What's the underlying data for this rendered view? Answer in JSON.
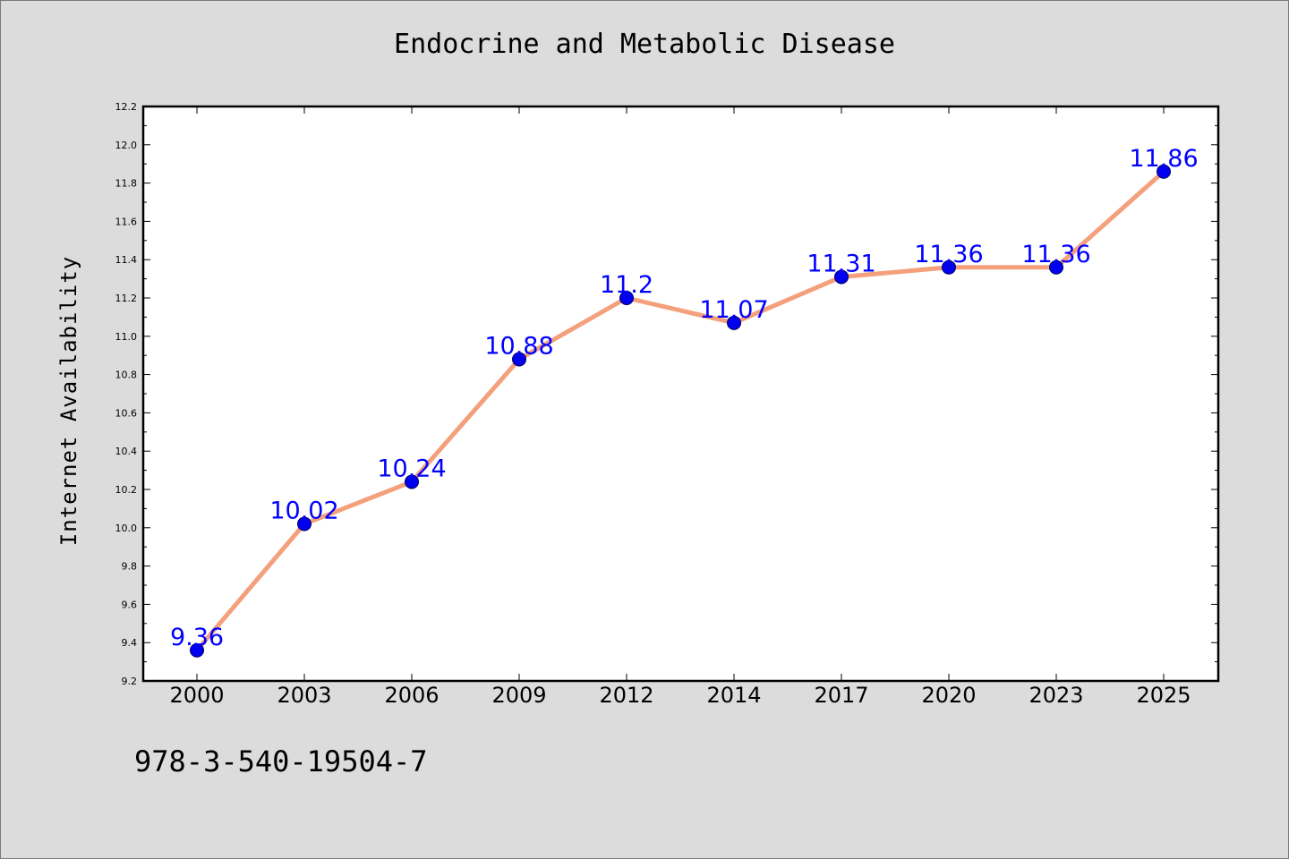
{
  "chart_data": {
    "type": "line",
    "title": "Endocrine and Metabolic Disease",
    "xlabel": "",
    "ylabel": "Internet Availability",
    "categories": [
      "2000",
      "2003",
      "2006",
      "2009",
      "2012",
      "2014",
      "2017",
      "2020",
      "2023",
      "2025"
    ],
    "series": [
      {
        "values": [
          9.36,
          10.02,
          10.24,
          10.88,
          11.2,
          11.07,
          11.31,
          11.36,
          11.36,
          11.86
        ],
        "labels": [
          "9.36",
          "10.02",
          "10.24",
          "10.88",
          "11.2",
          "11.07",
          "11.31",
          "11.36",
          "11.36",
          "11.86"
        ],
        "line_color": "#f4a07c",
        "marker_color": "#0000ee"
      }
    ],
    "ylim": [
      9.2,
      12.2
    ],
    "yticks": [
      "9.2",
      "9.4",
      "9.6",
      "9.8",
      "10.0",
      "10.2",
      "10.4",
      "10.6",
      "10.8",
      "11.0",
      "11.2",
      "11.4",
      "11.6",
      "11.8",
      "12.0",
      "12.2"
    ],
    "grid": false,
    "data_label_color": "#0000ff"
  },
  "footer": {
    "code": "978-3-540-19504-7"
  }
}
